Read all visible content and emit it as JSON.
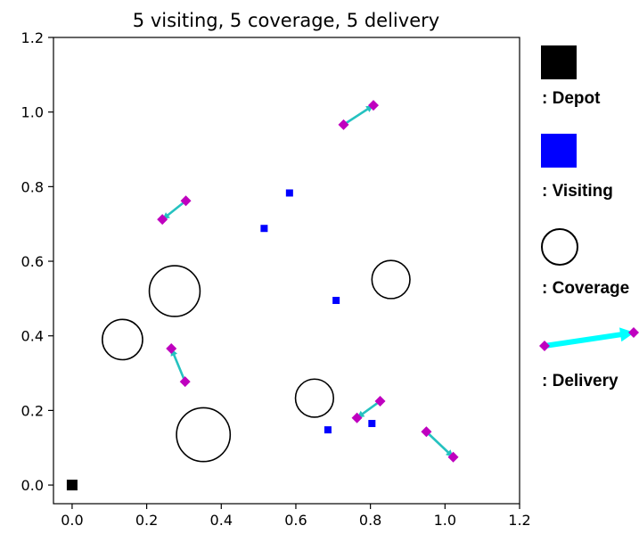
{
  "chart_data": {
    "type": "scatter",
    "title": "5 visiting, 5 coverage, 5 delivery",
    "xlabel": "",
    "ylabel": "",
    "xlim": [
      -0.05,
      1.2
    ],
    "ylim": [
      -0.05,
      1.2
    ],
    "xticks": [
      "0.0",
      "0.2",
      "0.4",
      "0.6",
      "0.8",
      "1.0",
      "1.2"
    ],
    "yticks": [
      "0.0",
      "0.2",
      "0.4",
      "0.6",
      "0.8",
      "1.0",
      "1.2"
    ],
    "grid": false,
    "legend_placement": "right, outside plot",
    "depot": {
      "x": 0.0,
      "y": 0.0
    },
    "visiting": [
      {
        "x": 0.515,
        "y": 0.688
      },
      {
        "x": 0.583,
        "y": 0.783
      },
      {
        "x": 0.708,
        "y": 0.495
      },
      {
        "x": 0.686,
        "y": 0.148
      },
      {
        "x": 0.804,
        "y": 0.165
      }
    ],
    "coverage": [
      {
        "x": 0.275,
        "y": 0.52,
        "r": 0.068
      },
      {
        "x": 0.135,
        "y": 0.39,
        "r": 0.054
      },
      {
        "x": 0.855,
        "y": 0.551,
        "r": 0.051
      },
      {
        "x": 0.65,
        "y": 0.233,
        "r": 0.051
      },
      {
        "x": 0.352,
        "y": 0.135,
        "r": 0.072
      }
    ],
    "delivery": [
      {
        "from": [
          0.728,
          0.966
        ],
        "to": [
          0.808,
          1.018
        ]
      },
      {
        "from": [
          0.305,
          0.762
        ],
        "to": [
          0.242,
          0.712
        ]
      },
      {
        "from": [
          0.303,
          0.277
        ],
        "to": [
          0.266,
          0.366
        ]
      },
      {
        "from": [
          0.826,
          0.225
        ],
        "to": [
          0.764,
          0.18
        ]
      },
      {
        "from": [
          0.95,
          0.143
        ],
        "to": [
          1.022,
          0.075
        ]
      }
    ],
    "colors": {
      "depot": "#000000",
      "visiting": "#0000ff",
      "coverage_edge": "#000000",
      "delivery_marker": "#bf00bf",
      "delivery_arrow": "#25c2c0",
      "legend_arrow": "#00ffff"
    },
    "legend": {
      "depot": ": Depot",
      "visiting": ": Visiting",
      "coverage": ": Coverage",
      "delivery": ": Delivery"
    }
  }
}
